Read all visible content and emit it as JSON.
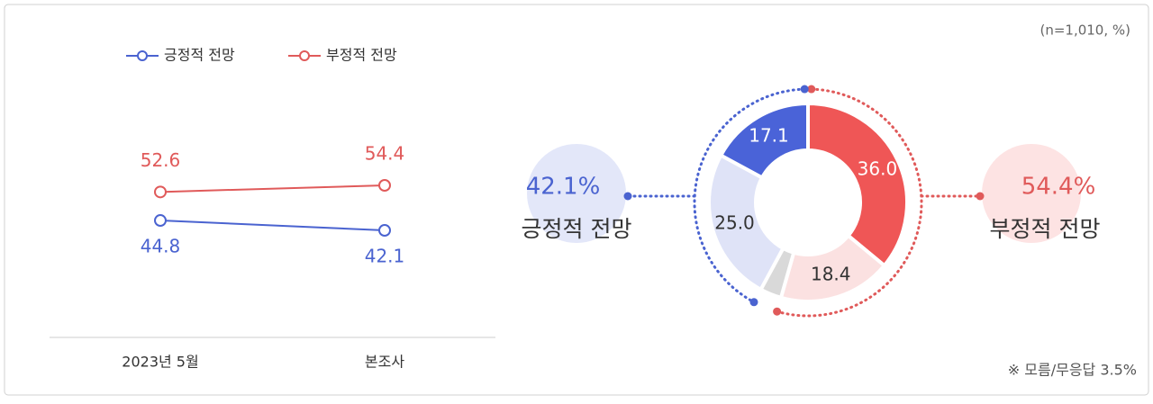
{
  "unit_note": "(n=1,010, %)",
  "chart_data": [
    {
      "type": "line",
      "categories": [
        "2023년 5월",
        "본조사"
      ],
      "series": [
        {
          "name": "긍정적 전망",
          "color": "#4a63d0",
          "values": [
            44.8,
            42.1
          ]
        },
        {
          "name": "부정적 전망",
          "color": "#e05a5a",
          "values": [
            52.6,
            54.4
          ]
        }
      ]
    },
    {
      "type": "donut",
      "values": [
        36.0,
        18.4,
        3.5,
        25.0,
        17.1
      ],
      "value_labels": [
        "36.0",
        "18.4",
        null,
        "25.0",
        "17.1"
      ],
      "colors": [
        "#ef5656",
        "#fbe1e1",
        "#d9d9d9",
        "#dfe3f7",
        "#4a63d8"
      ],
      "label_colors": [
        "#ffffff",
        "#333333",
        null,
        "#333333",
        "#ffffff"
      ],
      "groups": [
        {
          "name": "부정적 전망",
          "value": 54.4,
          "value_label": "54.4%",
          "color": "#e05a5a",
          "bubble": "#fde3e3"
        },
        {
          "name": "긍정적 전망",
          "value": 42.1,
          "value_label": "42.1%",
          "color": "#4a63d0",
          "bubble": "#e3e7f9"
        }
      ],
      "note": "※ 모름/무응답 3.5%"
    }
  ]
}
